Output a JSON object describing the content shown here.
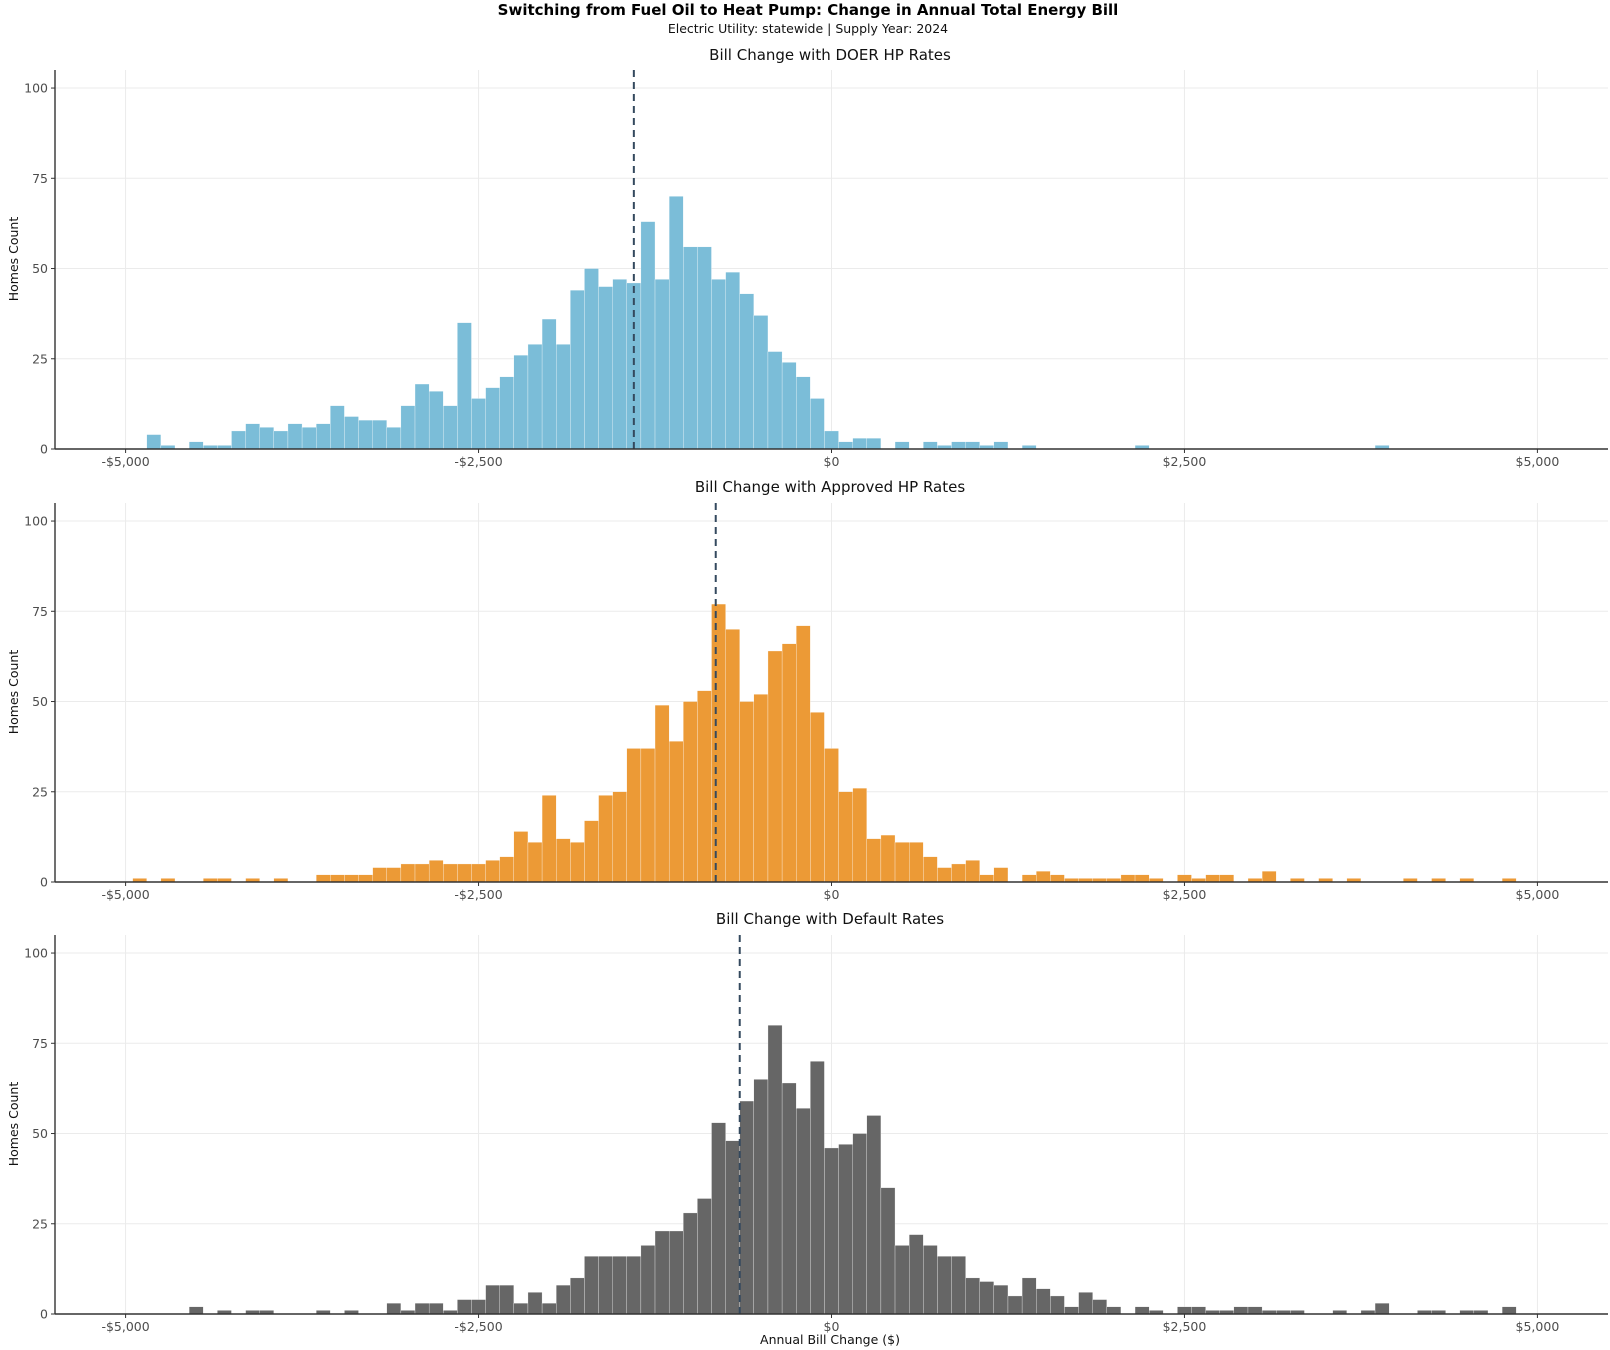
{
  "title": "Switching from Fuel Oil to Heat Pump: Change in Annual Total Energy Bill",
  "subtitle": "Electric Utility: statewide | Supply Year: 2024",
  "chart_data": [
    {
      "type": "bar",
      "title": "Bill Change with DOER HP Rates",
      "xlabel": "",
      "ylabel": "Homes Count",
      "xlim": [
        -5500,
        5500
      ],
      "ylim": [
        0,
        105
      ],
      "xticks": [
        -5000,
        -2500,
        0,
        2500,
        5000
      ],
      "xtick_labels": [
        "-$5,000",
        "-$2,500",
        "$0",
        "$2,500",
        "$5,000"
      ],
      "yticks": [
        0,
        25,
        50,
        75,
        100
      ],
      "ytick_labels": [
        "0",
        "25",
        "50",
        "75",
        "100"
      ],
      "bin_width": 100,
      "color": "#7bbdd8",
      "mean": -1400,
      "x": [
        -4800,
        -4700,
        -4500,
        -4400,
        -4300,
        -4200,
        -4100,
        -4000,
        -3900,
        -3800,
        -3700,
        -3600,
        -3500,
        -3400,
        -3300,
        -3200,
        -3100,
        -3000,
        -2900,
        -2800,
        -2700,
        -2600,
        -2500,
        -2400,
        -2300,
        -2200,
        -2100,
        -2000,
        -1900,
        -1800,
        -1700,
        -1600,
        -1500,
        -1400,
        -1300,
        -1200,
        -1100,
        -1000,
        -900,
        -800,
        -700,
        -600,
        -500,
        -400,
        -300,
        -200,
        -100,
        0,
        100,
        200,
        300,
        500,
        700,
        800,
        900,
        1000,
        1100,
        1200,
        1400,
        2200,
        3900
      ],
      "values": [
        4,
        1,
        2,
        1,
        1,
        5,
        7,
        6,
        5,
        7,
        6,
        7,
        12,
        9,
        8,
        8,
        6,
        12,
        18,
        16,
        12,
        35,
        14,
        17,
        20,
        26,
        29,
        36,
        29,
        44,
        50,
        45,
        47,
        46,
        63,
        47,
        70,
        56,
        56,
        47,
        49,
        43,
        37,
        27,
        24,
        20,
        14,
        5,
        2,
        3,
        3,
        2,
        2,
        1,
        2,
        2,
        1,
        2,
        1,
        1,
        1
      ]
    },
    {
      "type": "bar",
      "title": "Bill Change with Approved HP Rates",
      "xlabel": "",
      "ylabel": "Homes Count",
      "xlim": [
        -5500,
        5500
      ],
      "ylim": [
        0,
        105
      ],
      "xticks": [
        -5000,
        -2500,
        0,
        2500,
        5000
      ],
      "xtick_labels": [
        "-$5,000",
        "-$2,500",
        "$0",
        "$2,500",
        "$5,000"
      ],
      "yticks": [
        0,
        25,
        50,
        75,
        100
      ],
      "ytick_labels": [
        "0",
        "25",
        "50",
        "75",
        "100"
      ],
      "bin_width": 100,
      "color": "#ec9a36",
      "mean": -820,
      "x": [
        -4900,
        -4700,
        -4400,
        -4300,
        -4100,
        -3900,
        -3600,
        -3500,
        -3400,
        -3300,
        -3200,
        -3100,
        -3000,
        -2900,
        -2800,
        -2700,
        -2600,
        -2500,
        -2400,
        -2300,
        -2200,
        -2100,
        -2000,
        -1900,
        -1800,
        -1700,
        -1600,
        -1500,
        -1400,
        -1300,
        -1200,
        -1100,
        -1000,
        -900,
        -800,
        -700,
        -600,
        -500,
        -400,
        -300,
        -200,
        -100,
        0,
        100,
        200,
        300,
        400,
        500,
        600,
        700,
        800,
        900,
        1000,
        1100,
        1200,
        1400,
        1500,
        1600,
        1700,
        1800,
        1900,
        2000,
        2100,
        2200,
        2300,
        2500,
        2600,
        2700,
        2800,
        3000,
        3100,
        3300,
        3500,
        3700,
        4100,
        4300,
        4500,
        4800
      ],
      "values": [
        1,
        1,
        1,
        1,
        1,
        1,
        2,
        2,
        2,
        2,
        4,
        4,
        5,
        5,
        6,
        5,
        5,
        5,
        6,
        7,
        14,
        11,
        24,
        12,
        11,
        17,
        24,
        25,
        37,
        37,
        49,
        39,
        50,
        53,
        77,
        70,
        50,
        52,
        64,
        66,
        71,
        47,
        37,
        25,
        26,
        12,
        13,
        11,
        11,
        7,
        4,
        5,
        6,
        2,
        4,
        2,
        3,
        2,
        1,
        1,
        1,
        1,
        2,
        2,
        1,
        2,
        1,
        2,
        2,
        1,
        3,
        1,
        1,
        1,
        1,
        1,
        1,
        1
      ]
    },
    {
      "type": "bar",
      "title": "Bill Change with Default Rates",
      "xlabel": "Annual Bill Change ($)",
      "ylabel": "Homes Count",
      "xlim": [
        -5500,
        5500
      ],
      "ylim": [
        0,
        105
      ],
      "xticks": [
        -5000,
        -2500,
        0,
        2500,
        5000
      ],
      "xtick_labels": [
        "-$5,000",
        "-$2,500",
        "$0",
        "$2,500",
        "$5,000"
      ],
      "yticks": [
        0,
        25,
        50,
        75,
        100
      ],
      "ytick_labels": [
        "0",
        "25",
        "50",
        "75",
        "100"
      ],
      "bin_width": 100,
      "color": "#666666",
      "mean": -650,
      "x": [
        -4500,
        -4300,
        -4100,
        -4000,
        -3600,
        -3400,
        -3100,
        -3000,
        -2900,
        -2800,
        -2700,
        -2600,
        -2500,
        -2400,
        -2300,
        -2200,
        -2100,
        -2000,
        -1900,
        -1800,
        -1700,
        -1600,
        -1500,
        -1400,
        -1300,
        -1200,
        -1100,
        -1000,
        -900,
        -800,
        -700,
        -600,
        -500,
        -400,
        -300,
        -200,
        -100,
        0,
        100,
        200,
        300,
        400,
        500,
        600,
        700,
        800,
        900,
        1000,
        1100,
        1200,
        1300,
        1400,
        1500,
        1600,
        1700,
        1800,
        1900,
        2000,
        2200,
        2300,
        2500,
        2600,
        2700,
        2800,
        2900,
        3000,
        3100,
        3200,
        3300,
        3600,
        3800,
        3900,
        4200,
        4300,
        4500,
        4600,
        4800
      ],
      "values": [
        2,
        1,
        1,
        1,
        1,
        1,
        3,
        1,
        3,
        3,
        1,
        4,
        4,
        8,
        8,
        3,
        6,
        3,
        8,
        10,
        16,
        16,
        16,
        16,
        19,
        23,
        23,
        28,
        32,
        53,
        48,
        59,
        65,
        80,
        64,
        57,
        70,
        46,
        47,
        50,
        55,
        35,
        19,
        22,
        19,
        16,
        16,
        10,
        9,
        8,
        5,
        10,
        7,
        5,
        2,
        6,
        4,
        2,
        2,
        1,
        2,
        2,
        1,
        1,
        2,
        2,
        1,
        1,
        1,
        1,
        1,
        3,
        1,
        1,
        1,
        1,
        2
      ]
    }
  ]
}
